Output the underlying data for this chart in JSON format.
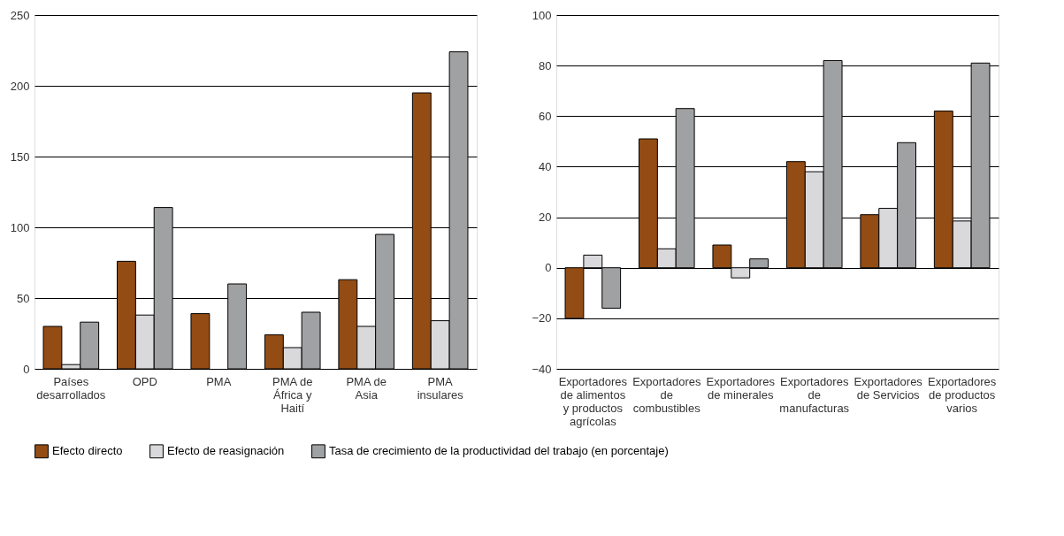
{
  "chart_data": [
    {
      "type": "bar",
      "categories": [
        "Países desarrollados",
        "OPD",
        "PMA",
        "PMA de África y Haití",
        "PMA de Asia",
        "PMA insulares"
      ],
      "series": [
        {
          "name": "Efecto directo",
          "color": "#934c13",
          "values": [
            30,
            76,
            39,
            24,
            63,
            195
          ]
        },
        {
          "name": "Efecto de reasignación",
          "color": "#d9d9db",
          "values": [
            3,
            38,
            null,
            15,
            30,
            34
          ]
        },
        {
          "name": "Tasa de crecimiento de la productividad del trabajo (en porcentaje)",
          "color": "#a0a1a3",
          "values": [
            33,
            114,
            60,
            40,
            95,
            224
          ]
        }
      ],
      "ylim": [
        0,
        250
      ],
      "yticks": [
        0,
        50,
        100,
        150,
        200,
        250
      ],
      "grid": "y",
      "legend": "bottom"
    },
    {
      "type": "bar",
      "categories": [
        "Exportadores de alimentos y productos agrícolas",
        "Exportadores de combustibles",
        "Exportadores de minerales",
        "Exportadores de manufacturas",
        "Exportadores de Servicios",
        "Exportadores de productos varios"
      ],
      "series": [
        {
          "name": "Efecto directo",
          "color": "#934c13",
          "values": [
            -20,
            51,
            9,
            42,
            21,
            62
          ]
        },
        {
          "name": "Efecto de reasignación",
          "color": "#d9d9db",
          "values": [
            5,
            7.5,
            -4,
            38,
            23.5,
            18.5
          ]
        },
        {
          "name": "Tasa de crecimiento de la productividad del trabajo (en porcentaje)",
          "color": "#a0a1a3",
          "values": [
            -16,
            63,
            3.5,
            82,
            49.5,
            81
          ]
        }
      ],
      "ylim": [
        -40,
        100
      ],
      "yticks": [
        -40,
        -20,
        0,
        20,
        40,
        60,
        80,
        100
      ],
      "grid": "y",
      "legend": "bottom"
    }
  ]
}
